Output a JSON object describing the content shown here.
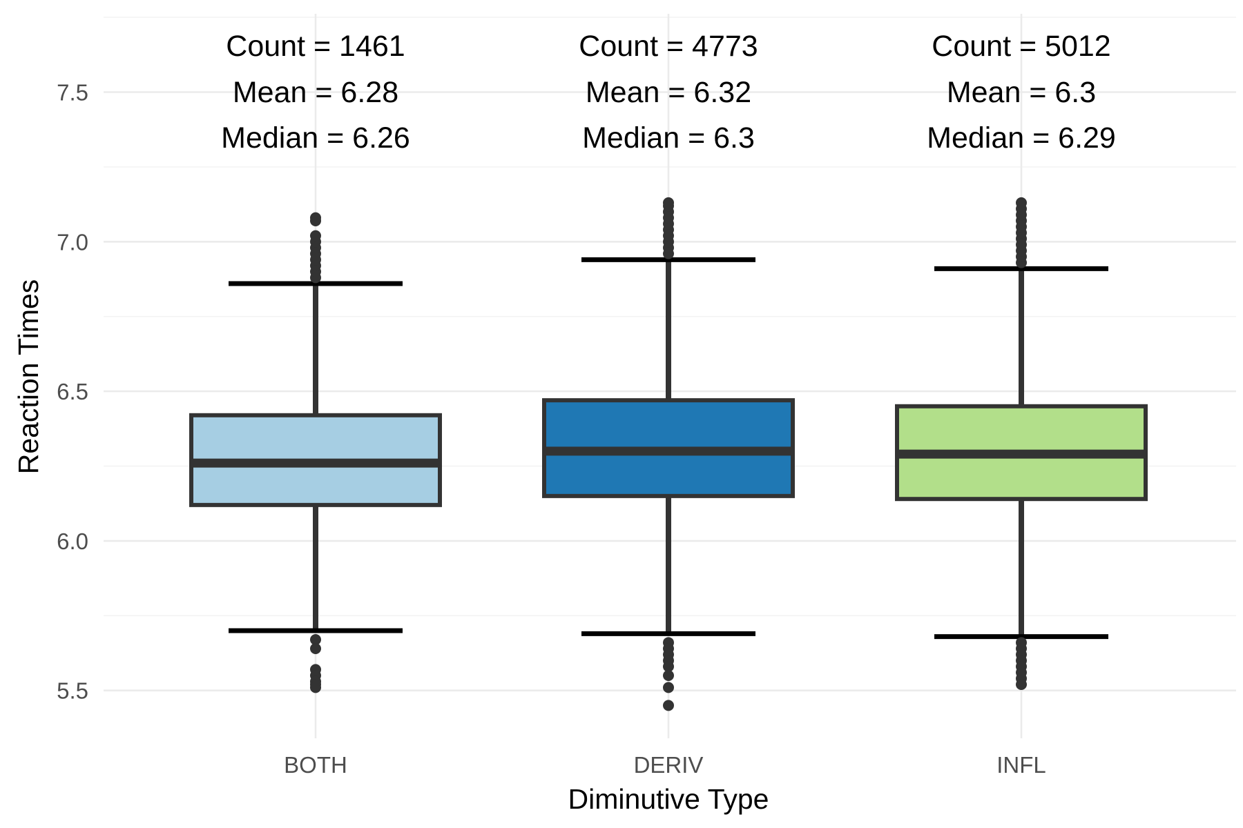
{
  "chart_data": {
    "type": "boxplot",
    "xlabel": "Diminutive Type",
    "ylabel": "Reaction Times",
    "ylim": [
      5.41,
      7.75
    ],
    "yticks": [
      5.5,
      6.0,
      6.5,
      7.0,
      7.5
    ],
    "ytick_labels": [
      "5.5",
      "6.0",
      "6.5",
      "7.0",
      "7.5"
    ],
    "grid": true,
    "legend": "none",
    "categories": [
      "BOTH",
      "DERIV",
      "INFL"
    ],
    "boxes": [
      {
        "category": "BOTH",
        "color": "#a6cee3",
        "q1": 6.12,
        "median": 6.26,
        "q3": 6.42,
        "whisker_low": 5.7,
        "whisker_high": 6.86,
        "outliers_high": [
          6.88,
          6.9,
          6.92,
          6.94,
          6.96,
          6.98,
          7.0,
          7.02,
          7.07,
          7.08
        ],
        "outliers_low": [
          5.67,
          5.64,
          5.57,
          5.55,
          5.53,
          5.52,
          5.51
        ],
        "annotation": [
          "Count = 1461",
          "Mean = 6.28",
          "Median = 6.26"
        ]
      },
      {
        "category": "DERIV",
        "color": "#1f78b4",
        "q1": 6.15,
        "median": 6.3,
        "q3": 6.47,
        "whisker_low": 5.69,
        "whisker_high": 6.94,
        "outliers_high": [
          6.96,
          6.98,
          7.0,
          7.02,
          7.04,
          7.06,
          7.08,
          7.1,
          7.12,
          7.13
        ],
        "outliers_low": [
          5.66,
          5.64,
          5.62,
          5.6,
          5.58,
          5.55,
          5.51,
          5.45
        ],
        "annotation": [
          "Count = 4773",
          "Mean = 6.32",
          "Median = 6.3"
        ]
      },
      {
        "category": "INFL",
        "color": "#b2df8a",
        "q1": 6.14,
        "median": 6.29,
        "q3": 6.45,
        "whisker_low": 5.68,
        "whisker_high": 6.91,
        "outliers_high": [
          6.93,
          6.95,
          6.97,
          6.99,
          7.01,
          7.03,
          7.05,
          7.07,
          7.09,
          7.11,
          7.13
        ],
        "outliers_low": [
          5.66,
          5.64,
          5.62,
          5.6,
          5.58,
          5.56,
          5.54,
          5.52
        ],
        "annotation": [
          "Count = 5012",
          "Mean = 6.3",
          "Median = 6.29"
        ]
      }
    ]
  }
}
